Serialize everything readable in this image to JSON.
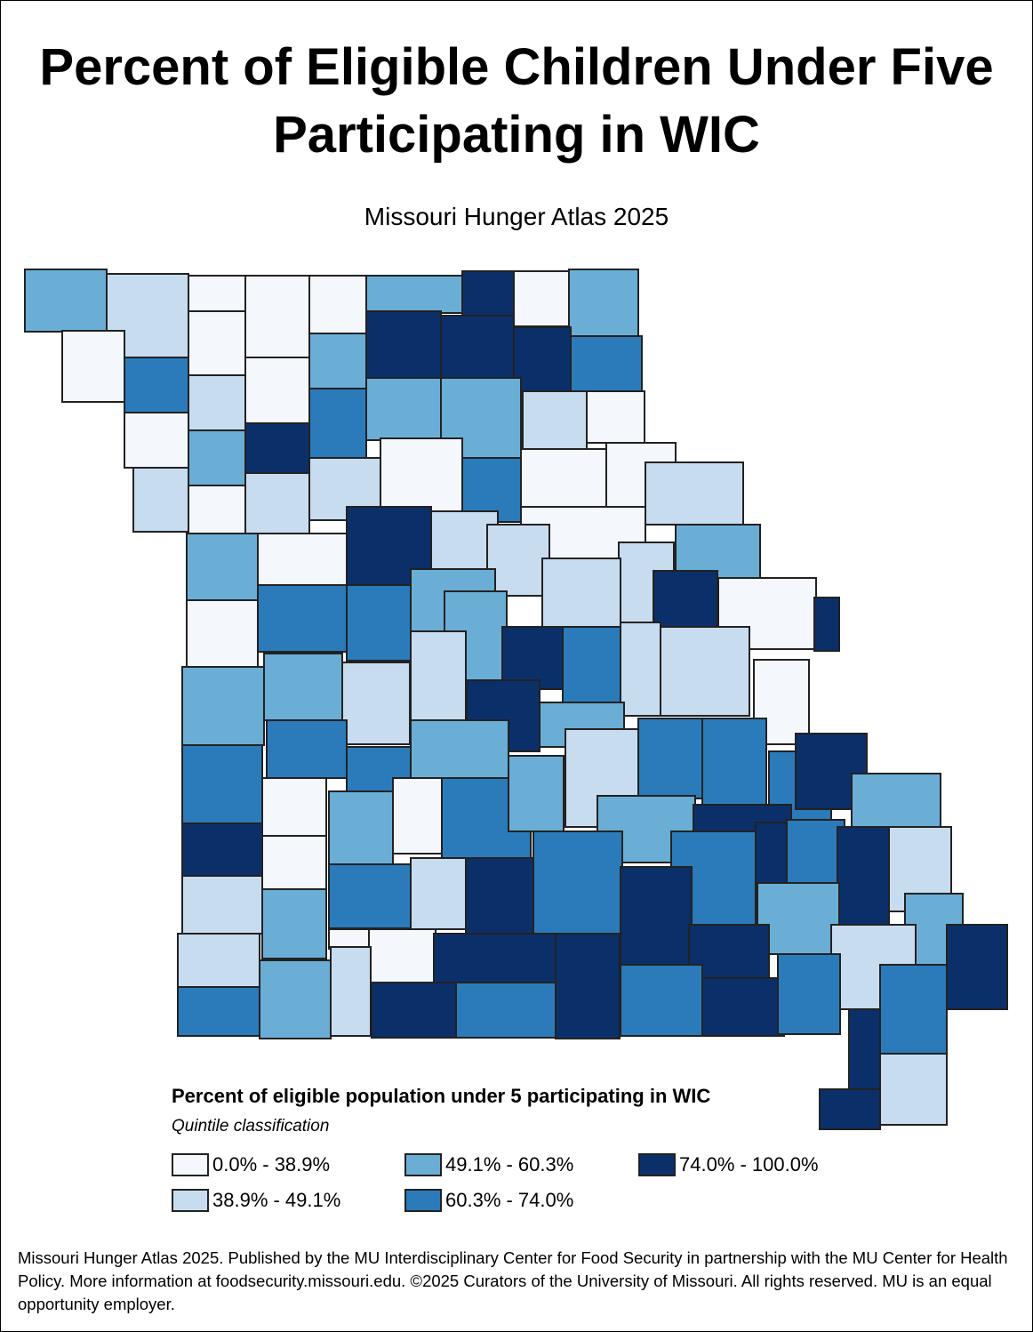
{
  "header": {
    "title": "Percent of Eligible Children Under Five Participating in WIC",
    "subtitle": "Missouri Hunger Atlas 2025"
  },
  "legend": {
    "title": "Percent of eligible population under 5 participating in WIC",
    "subtitle": "Quintile classification",
    "classes": [
      {
        "label": "0.0% - 38.9%",
        "color": "#f4f8fd"
      },
      {
        "label": "38.9% - 49.1%",
        "color": "#c8dcf0"
      },
      {
        "label": "49.1% - 60.3%",
        "color": "#6aaed6"
      },
      {
        "label": "60.3% - 74.0%",
        "color": "#2b7bba"
      },
      {
        "label": "74.0% - 100.0%",
        "color": "#0b3069"
      }
    ]
  },
  "footer": "Missouri Hunger Atlas 2025. Published by the MU Interdisciplinary Center for Food Security in partnership with the MU Center for Health Policy. More information at foodsecurity.missouri.edu. ©2025 Curators of the University of Missouri. All rights reserved. MU is an equal opportunity employer."
}
